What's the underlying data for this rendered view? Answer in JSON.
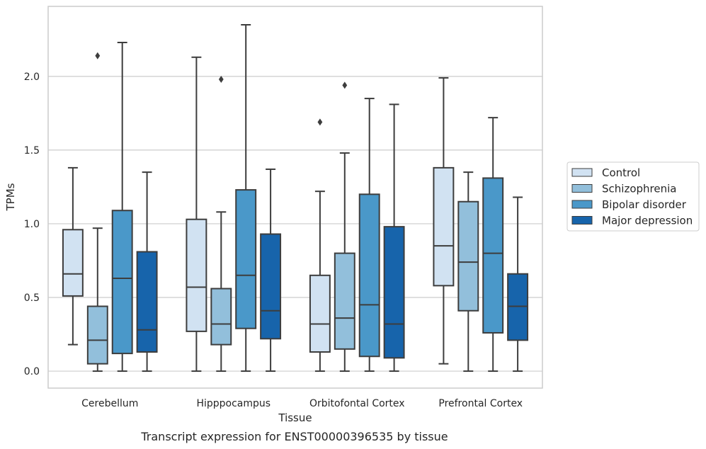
{
  "chart_data": {
    "type": "boxplot",
    "xlabel": "Tissue",
    "ylabel": "TPMs",
    "caption": "Transcript expression for ENST00000396535 by tissue",
    "categories": [
      "Cerebellum",
      "Hipppocampus",
      "Orbitofontal Cortex",
      "Prefrontal Cortex"
    ],
    "ylim": [
      -0.115,
      2.475
    ],
    "yticks": [
      "0.0",
      "0.5",
      "1.0",
      "1.5",
      "2.0"
    ],
    "yticks_values": [
      0,
      0.5,
      1.0,
      1.5,
      2.0
    ],
    "grid": "horizontal",
    "legend_position": "right",
    "series": [
      {
        "name": "Control",
        "color": "#d1e2f2",
        "boxes": [
          {
            "whislo": 0.18,
            "q1": 0.51,
            "med": 0.66,
            "q3": 0.96,
            "whishi": 1.38,
            "fliers": []
          },
          {
            "whislo": 0.0,
            "q1": 0.27,
            "med": 0.57,
            "q3": 1.03,
            "whishi": 2.13,
            "fliers": []
          },
          {
            "whislo": 0.0,
            "q1": 0.13,
            "med": 0.32,
            "q3": 0.65,
            "whishi": 1.22,
            "fliers": [
              1.69
            ]
          },
          {
            "whislo": 0.05,
            "q1": 0.58,
            "med": 0.85,
            "q3": 1.38,
            "whishi": 1.99,
            "fliers": []
          }
        ]
      },
      {
        "name": "Schizophrenia",
        "color": "#92bfdb",
        "boxes": [
          {
            "whislo": 0.0,
            "q1": 0.05,
            "med": 0.21,
            "q3": 0.44,
            "whishi": 0.97,
            "fliers": [
              2.14
            ]
          },
          {
            "whislo": 0.0,
            "q1": 0.18,
            "med": 0.32,
            "q3": 0.56,
            "whishi": 1.08,
            "fliers": [
              1.98
            ]
          },
          {
            "whislo": 0.0,
            "q1": 0.15,
            "med": 0.36,
            "q3": 0.8,
            "whishi": 1.48,
            "fliers": [
              1.94
            ]
          },
          {
            "whislo": 0.0,
            "q1": 0.41,
            "med": 0.74,
            "q3": 1.15,
            "whishi": 1.35,
            "fliers": []
          }
        ]
      },
      {
        "name": "Bipolar disorder",
        "color": "#4a98c9",
        "boxes": [
          {
            "whislo": 0.0,
            "q1": 0.12,
            "med": 0.63,
            "q3": 1.09,
            "whishi": 2.23,
            "fliers": []
          },
          {
            "whislo": 0.0,
            "q1": 0.29,
            "med": 0.65,
            "q3": 1.23,
            "whishi": 2.35,
            "fliers": []
          },
          {
            "whislo": 0.0,
            "q1": 0.1,
            "med": 0.45,
            "q3": 1.2,
            "whishi": 1.85,
            "fliers": []
          },
          {
            "whislo": 0.0,
            "q1": 0.26,
            "med": 0.8,
            "q3": 1.31,
            "whishi": 1.72,
            "fliers": []
          }
        ]
      },
      {
        "name": "Major depression",
        "color": "#1764ab",
        "boxes": [
          {
            "whislo": 0.0,
            "q1": 0.13,
            "med": 0.28,
            "q3": 0.81,
            "whishi": 1.35,
            "fliers": []
          },
          {
            "whislo": 0.0,
            "q1": 0.22,
            "med": 0.41,
            "q3": 0.93,
            "whishi": 1.37,
            "fliers": []
          },
          {
            "whislo": 0.0,
            "q1": 0.09,
            "med": 0.32,
            "q3": 0.98,
            "whishi": 1.81,
            "fliers": []
          },
          {
            "whislo": 0.0,
            "q1": 0.21,
            "med": 0.44,
            "q3": 0.66,
            "whishi": 1.18,
            "fliers": []
          }
        ]
      }
    ]
  }
}
